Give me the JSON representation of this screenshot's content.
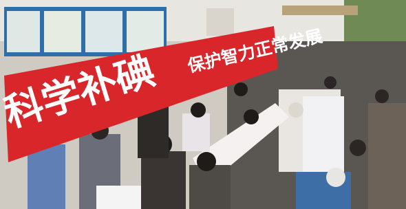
{
  "banner": {
    "main_text": "科学补碘",
    "slogan_text": "保护智力正常发展"
  }
}
